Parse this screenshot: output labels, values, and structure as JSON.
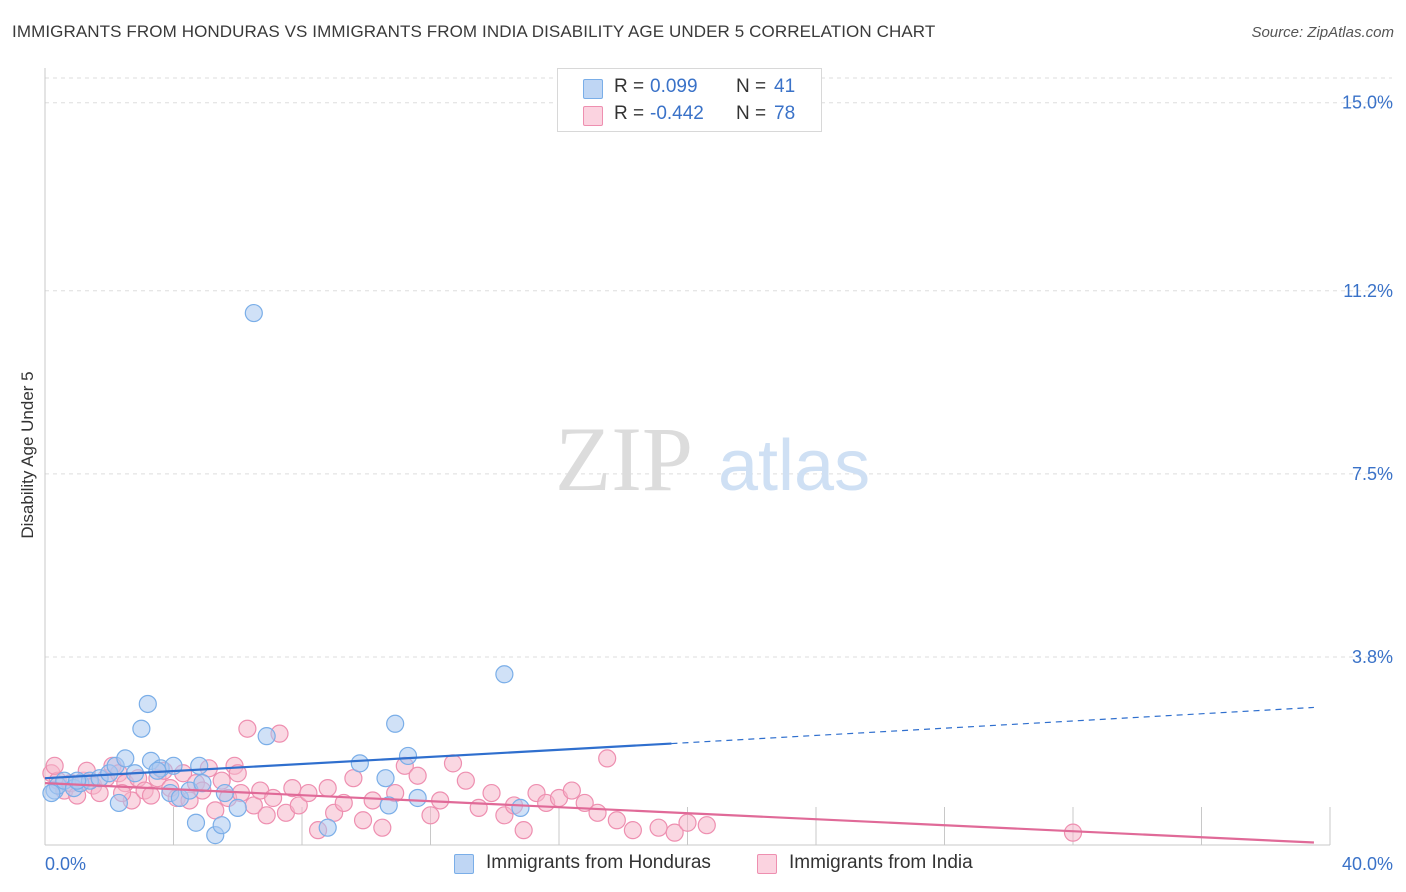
{
  "title": "IMMIGRANTS FROM HONDURAS VS IMMIGRANTS FROM INDIA DISABILITY AGE UNDER 5 CORRELATION CHART",
  "source": "Source: ZipAtlas.com",
  "watermark": {
    "zip": "ZIP",
    "atlas": "atlas"
  },
  "legend": {
    "rows": [
      {
        "r_label": "R =",
        "r_value": "0.099",
        "n_label": "N =",
        "n_value": "41",
        "color": "#a9c8f0"
      },
      {
        "r_label": "R =",
        "r_value": "-0.442",
        "n_label": "N =",
        "n_value": "78",
        "color": "#f5b6cb"
      }
    ]
  },
  "bottom_legend": [
    {
      "label": "Immigrants from Honduras",
      "color": "#a9c8f0"
    },
    {
      "label": "Immigrants from India",
      "color": "#f5b6cb"
    }
  ],
  "chart_data": {
    "type": "scatter",
    "title": "IMMIGRANTS FROM HONDURAS VS IMMIGRANTS FROM INDIA DISABILITY AGE UNDER 5 CORRELATION CHART",
    "xlabel": "",
    "ylabel": "Disability Age Under 5",
    "xlim": [
      0,
      40
    ],
    "ylim": [
      0,
      15.5
    ],
    "x_tick_labels": [
      {
        "value": 0,
        "label": "0.0%"
      },
      {
        "value": 40,
        "label": "40.0%"
      }
    ],
    "y_tick_labels": [
      {
        "value": 3.8,
        "label": "3.8%"
      },
      {
        "value": 7.5,
        "label": "7.5%"
      },
      {
        "value": 11.2,
        "label": "11.2%"
      },
      {
        "value": 15.0,
        "label": "15.0%"
      }
    ],
    "grid": true,
    "series": [
      {
        "name": "Immigrants from Honduras",
        "color": "#7aaee8",
        "fill": "#a9c8f0",
        "trend": {
          "x0": 0,
          "y0": 1.35,
          "x1": 19.5,
          "y1": 2.05,
          "dash_to_x": 39.5,
          "dash_to_y": 2.78,
          "color": "#2f6fce"
        },
        "points": [
          [
            0.3,
            1.1
          ],
          [
            0.4,
            1.2
          ],
          [
            0.6,
            1.3
          ],
          [
            0.9,
            1.15
          ],
          [
            1.1,
            1.25
          ],
          [
            1.4,
            1.3
          ],
          [
            1.7,
            1.35
          ],
          [
            2.0,
            1.45
          ],
          [
            2.2,
            1.6
          ],
          [
            2.3,
            0.85
          ],
          [
            2.5,
            1.75
          ],
          [
            2.8,
            1.45
          ],
          [
            3.0,
            2.35
          ],
          [
            3.2,
            2.85
          ],
          [
            3.3,
            1.7
          ],
          [
            3.6,
            1.55
          ],
          [
            3.9,
            1.05
          ],
          [
            4.0,
            1.6
          ],
          [
            4.2,
            0.95
          ],
          [
            4.5,
            1.1
          ],
          [
            4.7,
            0.45
          ],
          [
            4.8,
            1.6
          ],
          [
            4.9,
            1.25
          ],
          [
            5.3,
            0.2
          ],
          [
            5.5,
            0.4
          ],
          [
            5.6,
            1.05
          ],
          [
            6.0,
            0.75
          ],
          [
            6.5,
            10.75
          ],
          [
            6.9,
            2.2
          ],
          [
            8.8,
            0.35
          ],
          [
            9.8,
            1.65
          ],
          [
            10.6,
            1.35
          ],
          [
            10.7,
            0.8
          ],
          [
            10.9,
            2.45
          ],
          [
            11.3,
            1.8
          ],
          [
            11.6,
            0.95
          ],
          [
            14.3,
            3.45
          ],
          [
            14.8,
            0.75
          ],
          [
            0.2,
            1.05
          ],
          [
            1.0,
            1.3
          ],
          [
            3.5,
            1.5
          ]
        ]
      },
      {
        "name": "Immigrants from India",
        "color": "#ee8fb0",
        "fill": "#f5b6cb",
        "trend": {
          "x0": 0,
          "y0": 1.25,
          "x1": 39.5,
          "y1": 0.05,
          "color": "#e06a98"
        },
        "points": [
          [
            0.2,
            1.45
          ],
          [
            0.4,
            1.3
          ],
          [
            0.6,
            1.1
          ],
          [
            0.8,
            1.25
          ],
          [
            1.0,
            1.0
          ],
          [
            1.2,
            1.3
          ],
          [
            1.5,
            1.2
          ],
          [
            1.7,
            1.05
          ],
          [
            1.9,
            1.35
          ],
          [
            2.1,
            1.6
          ],
          [
            2.3,
            1.45
          ],
          [
            2.5,
            1.25
          ],
          [
            2.7,
            0.9
          ],
          [
            2.9,
            1.35
          ],
          [
            3.1,
            1.1
          ],
          [
            3.3,
            1.0
          ],
          [
            3.5,
            1.35
          ],
          [
            3.7,
            1.5
          ],
          [
            3.9,
            1.15
          ],
          [
            4.1,
            0.95
          ],
          [
            4.3,
            1.45
          ],
          [
            4.5,
            0.9
          ],
          [
            4.7,
            1.25
          ],
          [
            4.9,
            1.1
          ],
          [
            5.1,
            1.55
          ],
          [
            5.3,
            0.7
          ],
          [
            5.5,
            1.3
          ],
          [
            5.7,
            0.95
          ],
          [
            5.9,
            1.6
          ],
          [
            6.1,
            1.05
          ],
          [
            6.3,
            2.35
          ],
          [
            6.5,
            0.8
          ],
          [
            6.7,
            1.1
          ],
          [
            6.9,
            0.6
          ],
          [
            7.1,
            0.95
          ],
          [
            7.3,
            2.25
          ],
          [
            7.5,
            0.65
          ],
          [
            7.7,
            1.15
          ],
          [
            7.9,
            0.8
          ],
          [
            8.2,
            1.05
          ],
          [
            8.5,
            0.3
          ],
          [
            8.8,
            1.15
          ],
          [
            9.0,
            0.65
          ],
          [
            9.3,
            0.85
          ],
          [
            9.6,
            1.35
          ],
          [
            9.9,
            0.5
          ],
          [
            10.2,
            0.9
          ],
          [
            10.5,
            0.35
          ],
          [
            10.9,
            1.05
          ],
          [
            11.2,
            1.6
          ],
          [
            11.6,
            1.4
          ],
          [
            12.0,
            0.6
          ],
          [
            12.3,
            0.9
          ],
          [
            12.7,
            1.65
          ],
          [
            13.1,
            1.3
          ],
          [
            13.5,
            0.75
          ],
          [
            13.9,
            1.05
          ],
          [
            14.3,
            0.6
          ],
          [
            14.6,
            0.8
          ],
          [
            14.9,
            0.3
          ],
          [
            15.3,
            1.05
          ],
          [
            15.6,
            0.85
          ],
          [
            16.0,
            0.95
          ],
          [
            16.4,
            1.1
          ],
          [
            16.8,
            0.85
          ],
          [
            17.2,
            0.65
          ],
          [
            17.5,
            1.75
          ],
          [
            17.8,
            0.5
          ],
          [
            18.3,
            0.3
          ],
          [
            19.1,
            0.35
          ],
          [
            19.6,
            0.25
          ],
          [
            20.0,
            0.45
          ],
          [
            20.6,
            0.4
          ],
          [
            32.0,
            0.25
          ],
          [
            0.3,
            1.6
          ],
          [
            1.3,
            1.5
          ],
          [
            2.4,
            1.05
          ],
          [
            6.0,
            1.45
          ]
        ]
      }
    ]
  }
}
